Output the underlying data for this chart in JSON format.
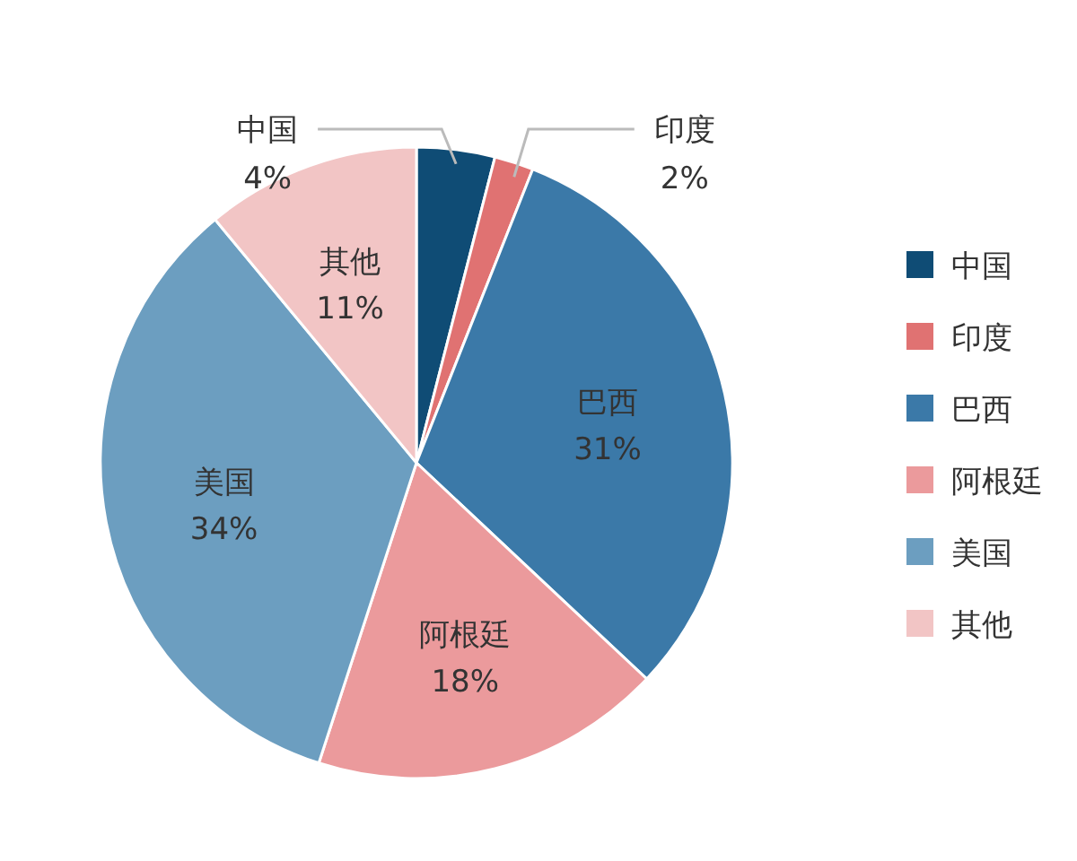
{
  "chart_data": {
    "type": "pie",
    "categories": [
      "中国",
      "印度",
      "巴西",
      "阿根廷",
      "美国",
      "其他"
    ],
    "values": [
      4,
      2,
      31,
      18,
      34,
      11
    ],
    "colors": [
      "#0f4c75",
      "#e07272",
      "#3b79a8",
      "#eb9a9c",
      "#6c9ec0",
      "#f2c5c5"
    ],
    "value_labels": [
      "4%",
      "2%",
      "31%",
      "18%",
      "34%",
      "11%"
    ],
    "legend": "right"
  }
}
